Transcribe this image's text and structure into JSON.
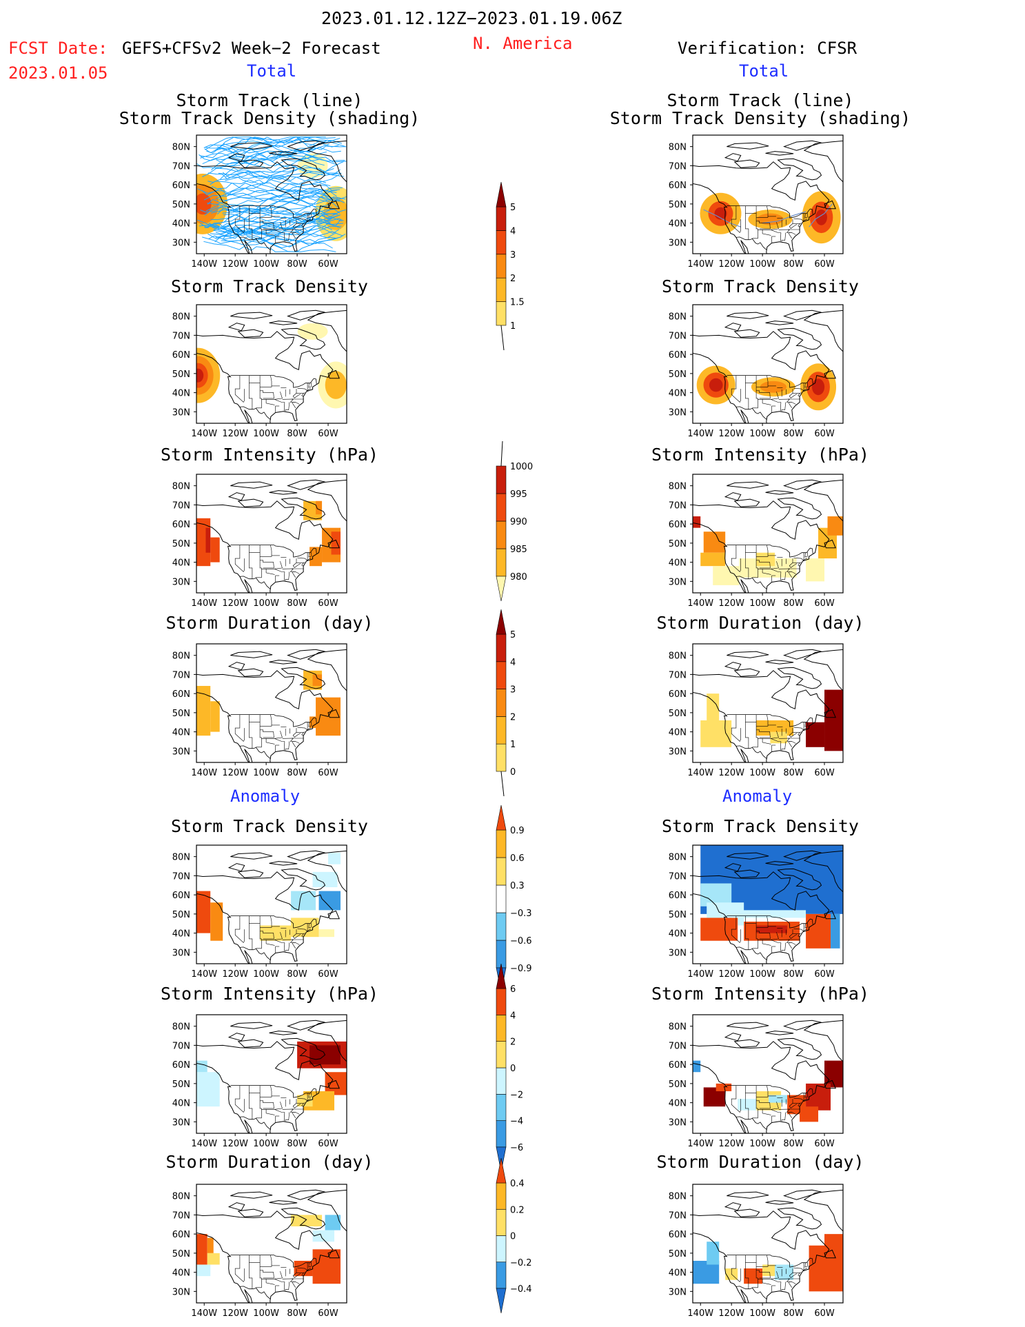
{
  "header": {
    "period": "2023.01.12.12Z−2023.01.19.06Z",
    "region": "N. America",
    "fcst_label": "FCST Date:",
    "fcst_model": "GEFS+CFSv2 Week−2 Forecast",
    "fcst_date": "2023.01.05",
    "verification": "Verification: CFSR"
  },
  "sections": {
    "total": "Total",
    "anomaly": "Anomaly"
  },
  "panel_titles": {
    "track_line": "Storm Track (line)",
    "track_shading": "Storm Track Density (shading)",
    "density": "Storm Track Density",
    "intensity": "Storm Intensity (hPa)",
    "duration": "Storm Duration (day)"
  },
  "axes": {
    "lat_labels": [
      "80N",
      "70N",
      "60N",
      "50N",
      "40N",
      "30N"
    ],
    "lon_labels": [
      "140W",
      "120W",
      "100W",
      "80W",
      "60W"
    ]
  },
  "colors": {
    "map_outline": "#000000",
    "track_line": "#1aa3ff",
    "warm": [
      "#fff7b0",
      "#ffe066",
      "#fdb827",
      "#f98a12",
      "#ef4a0e",
      "#c81e0c",
      "#8b0000"
    ],
    "cool": [
      "#cdf5ff",
      "#a6e6f8",
      "#6ecbf2",
      "#3a9be3",
      "#1f6fd0"
    ]
  },
  "colorbars": [
    {
      "name": "total-density",
      "labels": [
        "5",
        "4",
        "3",
        "2",
        "1.5",
        "1"
      ]
    },
    {
      "name": "total-intensity",
      "labels": [
        "1000",
        "995",
        "990",
        "985",
        "980"
      ]
    },
    {
      "name": "total-duration",
      "labels": [
        "5",
        "4",
        "3",
        "2",
        "1",
        "0"
      ]
    },
    {
      "name": "anomaly-density",
      "labels": [
        "0.9",
        "0.6",
        "0.3",
        "−0.3",
        "−0.6",
        "−0.9"
      ]
    },
    {
      "name": "anomaly-intensity",
      "labels": [
        "6",
        "4",
        "2",
        "0",
        "−2",
        "−4",
        "−6"
      ]
    },
    {
      "name": "anomaly-duration",
      "labels": [
        "0.4",
        "0.2",
        "0",
        "−0.2",
        "−0.4"
      ]
    }
  ]
}
